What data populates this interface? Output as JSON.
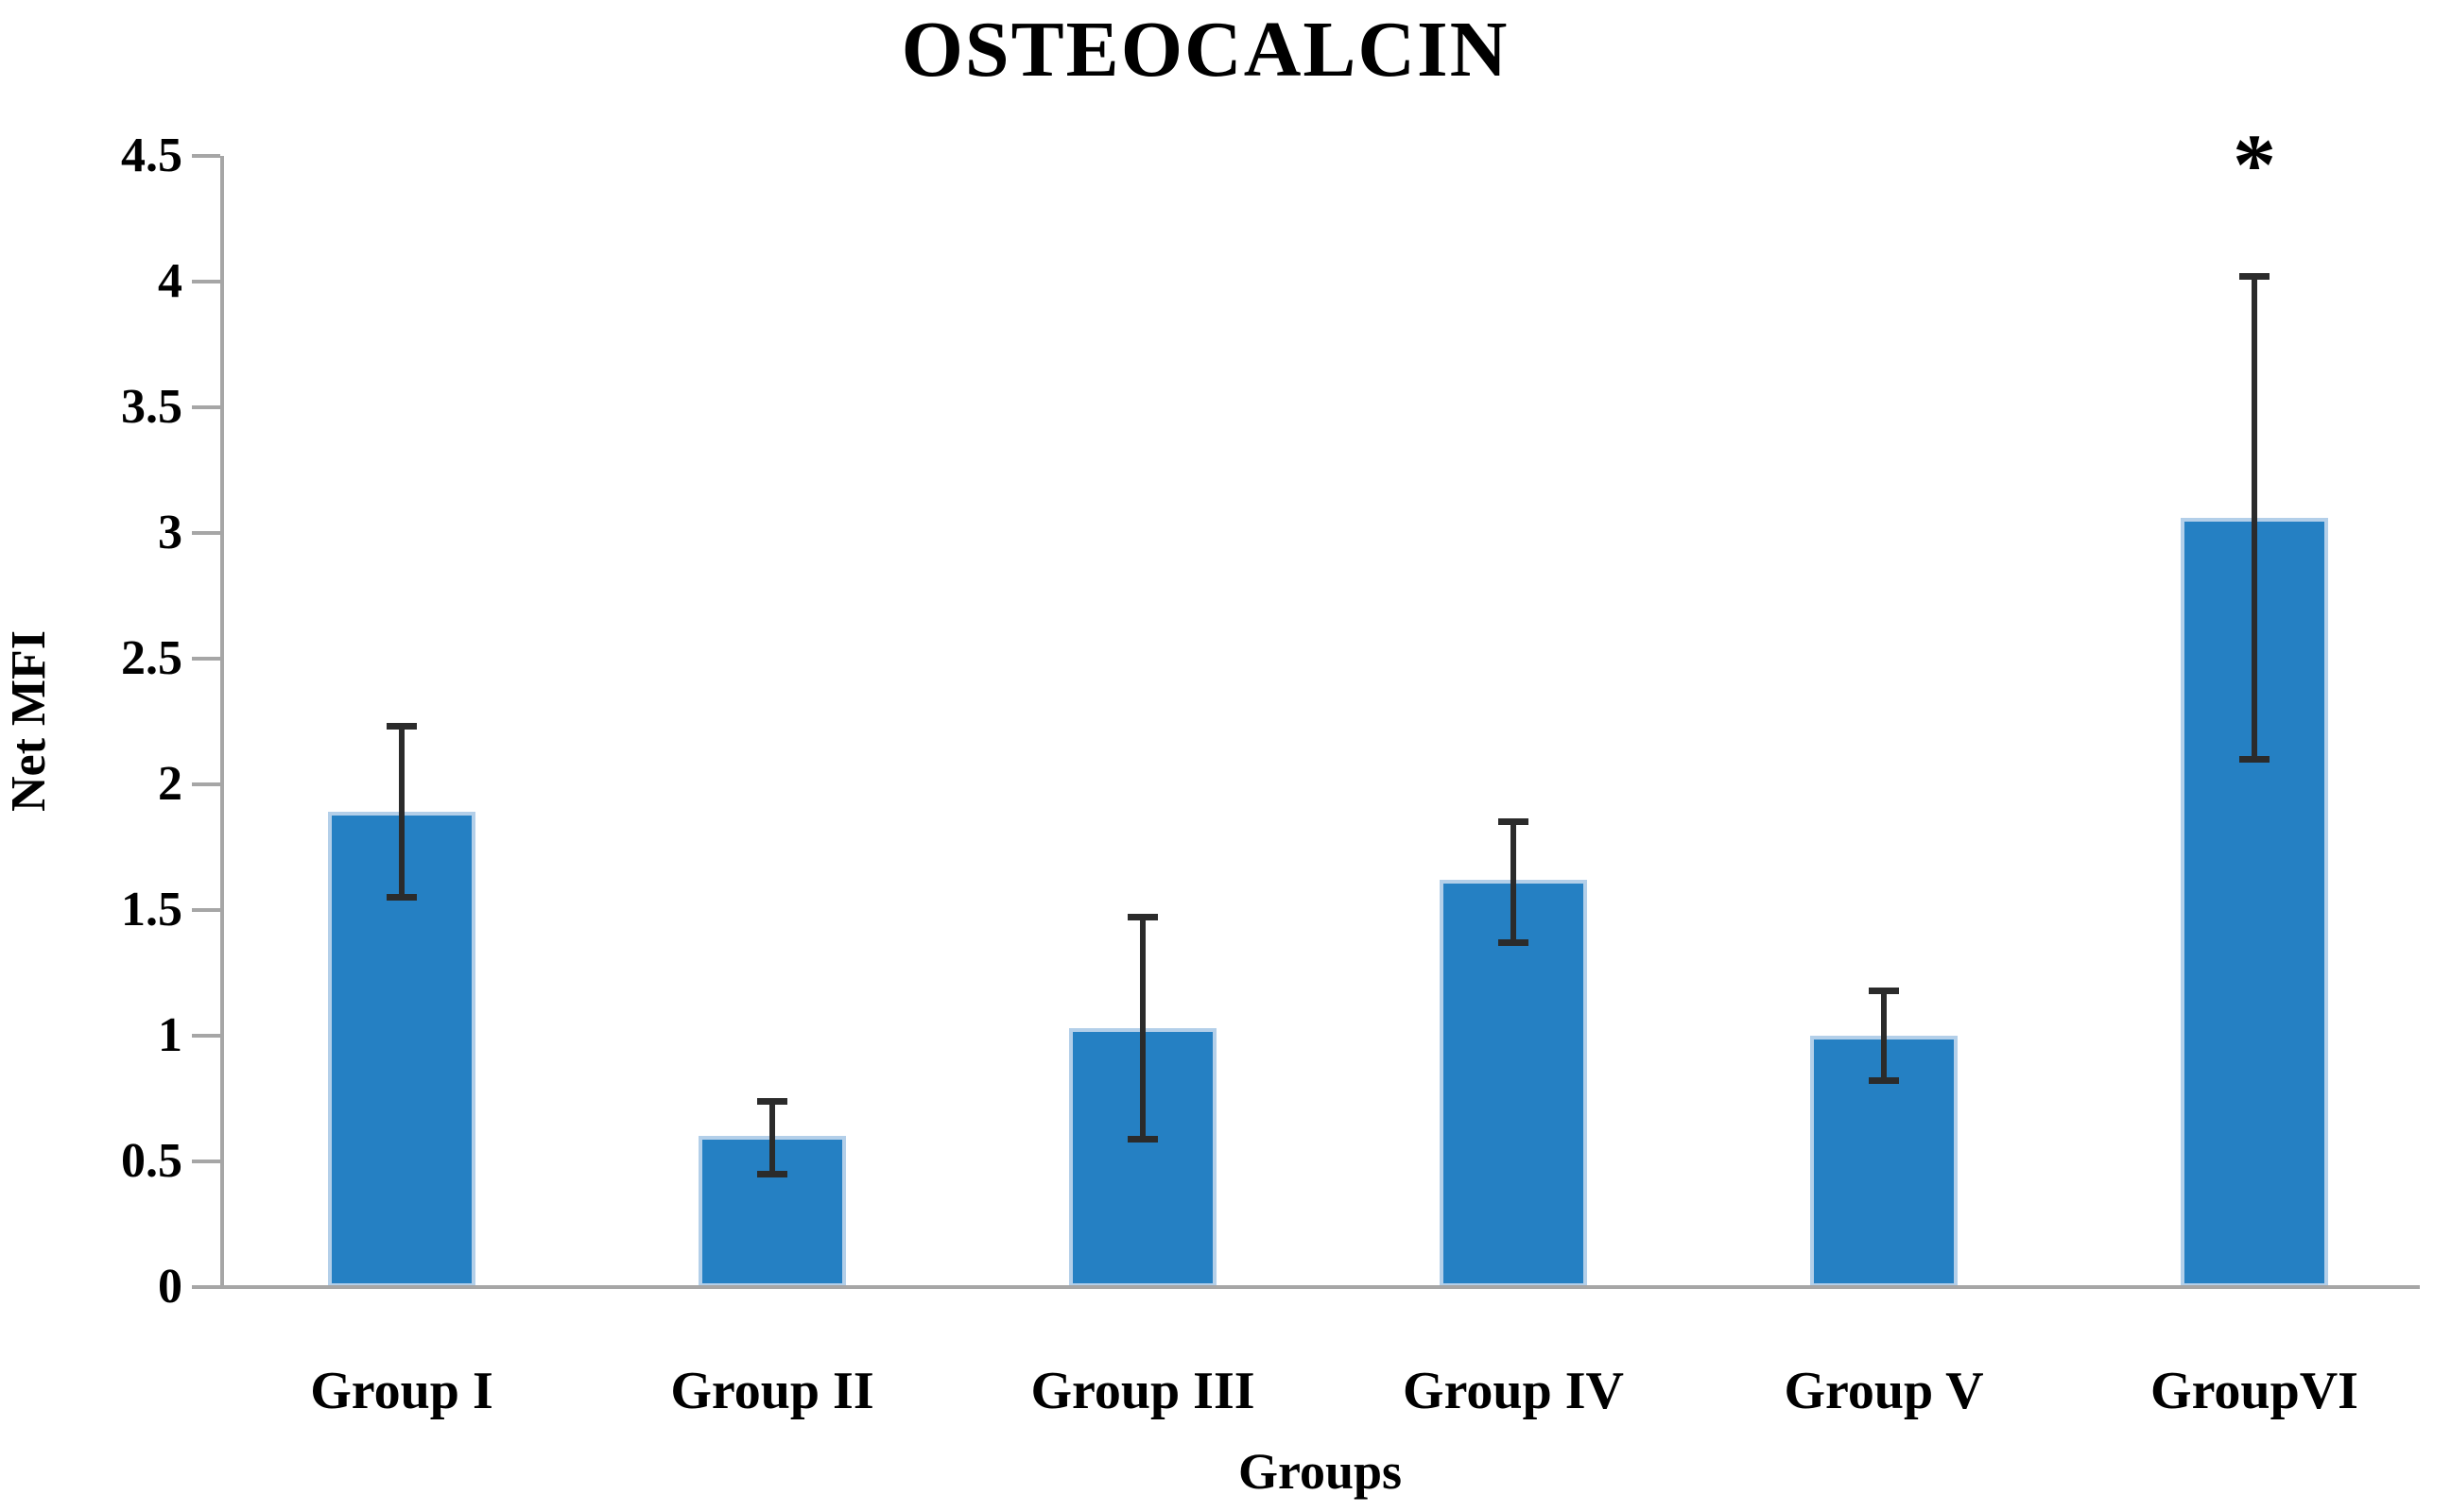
{
  "chart_data": {
    "type": "bar",
    "title": "OSTEOCALCIN",
    "xlabel": "Groups",
    "ylabel": "Net MFI",
    "ylim": [
      0,
      4.5
    ],
    "ytick_step": 0.5,
    "grid": false,
    "legend": null,
    "categories": [
      "Group I",
      "Group II",
      "Group III",
      "Group IV",
      "Group V",
      "GroupVI"
    ],
    "series": [
      {
        "name": "Net MFI",
        "values": [
          1.89,
          0.6,
          1.03,
          1.62,
          1.0,
          3.06
        ],
        "error_upper": [
          2.23,
          0.74,
          1.47,
          1.85,
          1.18,
          4.02
        ],
        "error_lower": [
          1.55,
          0.45,
          0.59,
          1.37,
          0.82,
          2.1
        ]
      }
    ],
    "annotations": [
      {
        "text": "*",
        "category": "GroupVI",
        "meaning": "significance-marker"
      }
    ]
  },
  "colors": {
    "bar_fill": "#2580c3",
    "bar_edge": "#b3cfe9",
    "error_bar": "#2b2b2b",
    "axis": "#a6a6a6",
    "text": "#000000",
    "background": "#ffffff"
  }
}
